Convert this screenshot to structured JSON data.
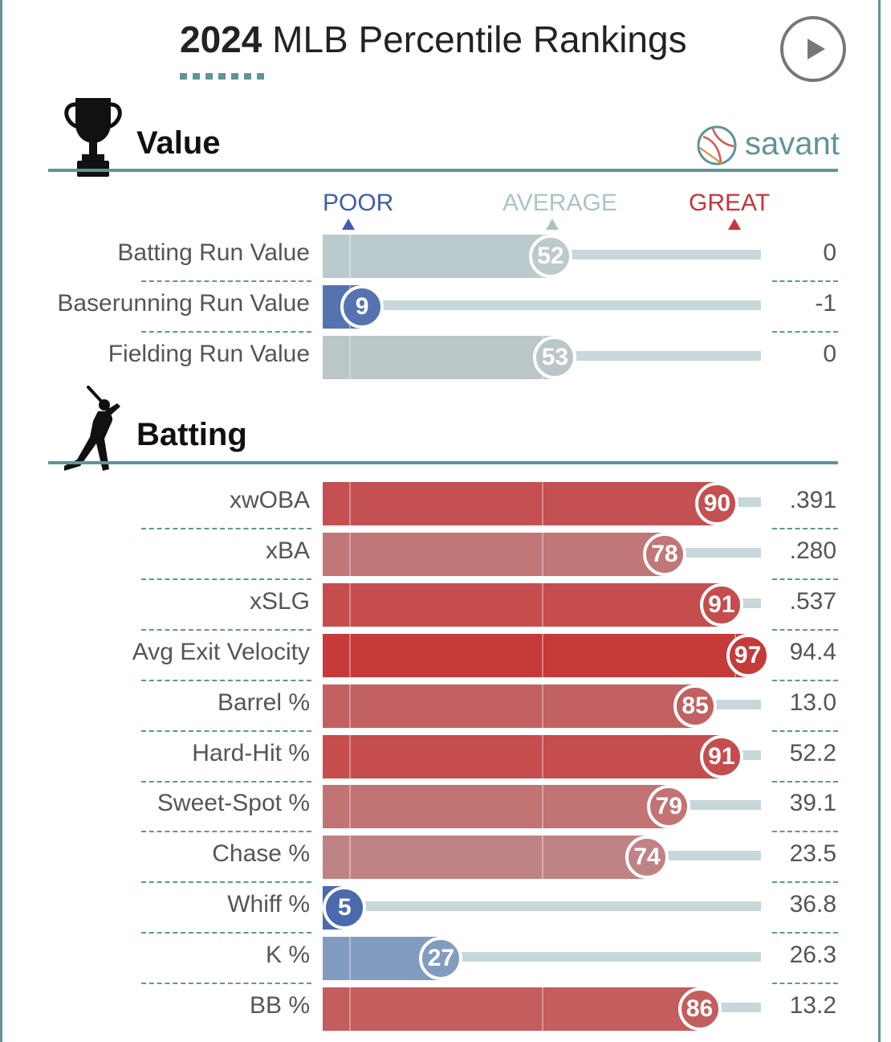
{
  "header": {
    "year": "2024",
    "title_rest": "MLB Percentile Rankings"
  },
  "brand": {
    "name": "savant",
    "color": "#5f9597"
  },
  "icons": {
    "play": "play-icon",
    "value_section": "trophy-icon",
    "batting_section": "batter-icon",
    "logo": "baseball-logo-icon"
  },
  "scale": {
    "poor": "POOR",
    "average": "AVERAGE",
    "great": "GREAT",
    "poor_color": "#3f5ea9",
    "average_color": "#a9c3c6",
    "great_color": "#c8343a"
  },
  "chart_data": {
    "type": "bar",
    "title": "2024 MLB Percentile Rankings",
    "xlim": [
      0,
      100
    ],
    "sections": [
      {
        "name": "Value",
        "rows": [
          {
            "label": "Batting Run Value",
            "percentile": 52,
            "value": "0"
          },
          {
            "label": "Baserunning Run Value",
            "percentile": 9,
            "value": "-1"
          },
          {
            "label": "Fielding Run Value",
            "percentile": 53,
            "value": "0"
          }
        ]
      },
      {
        "name": "Batting",
        "rows": [
          {
            "label": "xwOBA",
            "percentile": 90,
            "value": ".391"
          },
          {
            "label": "xBA",
            "percentile": 78,
            "value": ".280"
          },
          {
            "label": "xSLG",
            "percentile": 91,
            "value": ".537"
          },
          {
            "label": "Avg Exit Velocity",
            "percentile": 97,
            "value": "94.4"
          },
          {
            "label": "Barrel %",
            "percentile": 85,
            "value": "13.0"
          },
          {
            "label": "Hard-Hit %",
            "percentile": 91,
            "value": "52.2"
          },
          {
            "label": "Sweet-Spot %",
            "percentile": 79,
            "value": "39.1"
          },
          {
            "label": "Chase %",
            "percentile": 74,
            "value": "23.5"
          },
          {
            "label": "Whiff %",
            "percentile": 5,
            "value": "36.8"
          },
          {
            "label": "K %",
            "percentile": 27,
            "value": "26.3"
          },
          {
            "label": "BB %",
            "percentile": 86,
            "value": "13.2"
          }
        ]
      }
    ]
  }
}
